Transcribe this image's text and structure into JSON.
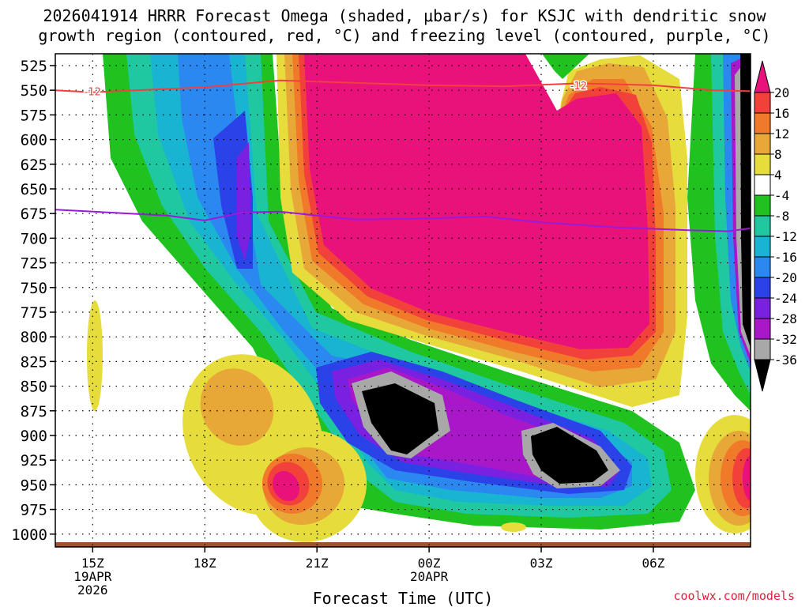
{
  "title_line1": "2026041914 HRRR Forecast Omega (shaded, μbar/s) for KSJC with dendritic snow",
  "title_line2": "growth region (contoured, red, °C) and freezing level (contoured, purple, °C)",
  "credit": "coolwx.com/models",
  "chart_data": {
    "type": "heatmap",
    "xlabel": "Forecast Time (UTC)",
    "ylabel": "",
    "x_ticks": [
      {
        "label": "15Z",
        "sub": [
          "19APR",
          "2026"
        ],
        "hours": 0
      },
      {
        "label": "18Z",
        "sub": [],
        "hours": 3
      },
      {
        "label": "21Z",
        "sub": [],
        "hours": 6
      },
      {
        "label": "00Z",
        "sub": [
          "20APR"
        ],
        "hours": 9
      },
      {
        "label": "03Z",
        "sub": [],
        "hours": 12
      },
      {
        "label": "06Z",
        "sub": [],
        "hours": 15
      }
    ],
    "xlim_hours": [
      -1,
      17.6
    ],
    "y_ticks": [
      525,
      550,
      575,
      600,
      625,
      650,
      675,
      700,
      725,
      750,
      775,
      800,
      825,
      850,
      875,
      900,
      925,
      950,
      975,
      1000
    ],
    "ylim_hPa": [
      513,
      1013
    ],
    "colorbar": {
      "labels": [
        "20",
        "16",
        "12",
        "8",
        "4",
        "-4",
        "-8",
        "-12",
        "-16",
        "-20",
        "-24",
        "-28",
        "-32",
        "-36"
      ],
      "bins": [
        {
          "range": ">20",
          "color": "#e8127a"
        },
        {
          "range": "16 to 20",
          "color": "#f2403a"
        },
        {
          "range": "12 to 16",
          "color": "#f07a2a"
        },
        {
          "range": "8 to 12",
          "color": "#e8a838"
        },
        {
          "range": "4 to 8",
          "color": "#e6dc3c"
        },
        {
          "range": "-4 to 4",
          "color": "#ffffff"
        },
        {
          "range": "-8 to -4",
          "color": "#1fc21f"
        },
        {
          "range": "-12 to -8",
          "color": "#1fc8a0"
        },
        {
          "range": "-16 to -12",
          "color": "#19b4d2"
        },
        {
          "range": "-20 to -16",
          "color": "#2a88f0"
        },
        {
          "range": "-24 to -20",
          "color": "#2a42e8"
        },
        {
          "range": "-28 to -24",
          "color": "#7a20e0"
        },
        {
          "range": "-32 to -28",
          "color": "#a818c8"
        },
        {
          "range": "-36 to -32",
          "color": "#a8a8a8"
        },
        {
          "range": "<-36",
          "color": "#000000"
        }
      ]
    },
    "dgz_contour": {
      "label": "-12",
      "color": "#f04040",
      "points": [
        [
          -1,
          550
        ],
        [
          0,
          552
        ],
        [
          3,
          547
        ],
        [
          5,
          540
        ],
        [
          9,
          545
        ],
        [
          11,
          546
        ],
        [
          13,
          543
        ],
        [
          15,
          545
        ],
        [
          16.6,
          550
        ],
        [
          17.6,
          551
        ]
      ]
    },
    "freezing_level": {
      "color": "#9a1adc",
      "points": [
        [
          -1,
          671
        ],
        [
          2,
          677
        ],
        [
          3,
          682
        ],
        [
          4,
          674
        ],
        [
          5,
          673
        ],
        [
          7,
          681
        ],
        [
          9,
          680
        ],
        [
          10.5,
          678
        ],
        [
          12,
          684
        ],
        [
          14,
          689
        ],
        [
          16,
          692
        ],
        [
          17,
          693
        ],
        [
          17.6,
          690
        ]
      ]
    },
    "surface_band_color": "#a0522d"
  }
}
